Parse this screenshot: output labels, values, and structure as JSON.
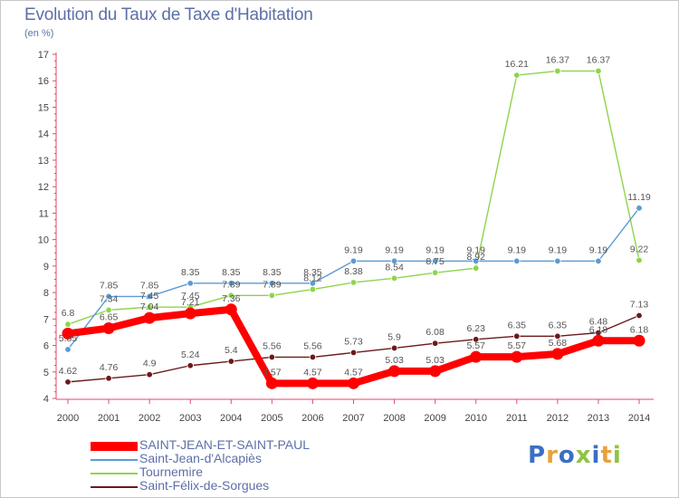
{
  "title": "Evolution du Taux de Taxe d'Habitation",
  "unit": "(en %)",
  "logo_text": "Proxiti",
  "chart_data": {
    "type": "line",
    "title": "Evolution du Taux de Taxe d'Habitation",
    "ylabel": "(en %)",
    "xlabel": "",
    "x": [
      "2000",
      "2001",
      "2002",
      "2003",
      "2004",
      "2005",
      "2006",
      "2007",
      "2008",
      "2009",
      "2010",
      "2011",
      "2012",
      "2013",
      "2014"
    ],
    "ylim": [
      4,
      17
    ],
    "yticks": [
      4,
      5,
      6,
      7,
      8,
      9,
      10,
      11,
      12,
      13,
      14,
      15,
      16,
      17
    ],
    "grid": false,
    "legend_position": "bottom-left",
    "series": [
      {
        "name": "SAINT-JEAN-ET-SAINT-PAUL",
        "color": "#ff0000",
        "values": [
          6.45,
          6.65,
          7.04,
          7.21,
          7.36,
          4.57,
          4.57,
          4.57,
          5.03,
          5.03,
          5.57,
          5.57,
          5.68,
          6.18,
          6.18
        ],
        "labels": [
          null,
          "6.65",
          "7.04",
          "7.21",
          "7.36",
          "4.57",
          "4.57",
          "4.57",
          "5.03",
          "5.03",
          "5.57",
          "5.57",
          "5.68",
          "6.18",
          "6.18"
        ]
      },
      {
        "name": "Saint-Jean-d'Alcapiès",
        "color": "#5b9bd5",
        "values": [
          5.85,
          7.85,
          7.85,
          8.35,
          8.35,
          8.35,
          8.35,
          9.19,
          9.19,
          9.19,
          9.19,
          9.19,
          9.19,
          9.19,
          11.19
        ],
        "labels": [
          "5.85",
          "7.85",
          "7.85",
          "8.35",
          "8.35",
          "8.35",
          "8.35",
          "9.19",
          "9.19",
          "9.19",
          "9.19",
          "9.19",
          "9.19",
          "9.19",
          "11.19"
        ]
      },
      {
        "name": "Tournemire",
        "color": "#8fd44a",
        "values": [
          6.8,
          7.34,
          7.45,
          7.45,
          7.89,
          7.89,
          8.12,
          8.38,
          8.54,
          8.75,
          8.92,
          16.21,
          16.37,
          16.37,
          9.22
        ],
        "labels": [
          "6.8",
          "7.34",
          "7.45",
          "7.45",
          "7.89",
          "7.89",
          "8.12",
          "8.38",
          "8.54",
          "8.75",
          "8.92",
          "16.21",
          "16.37",
          "16.37",
          "9.22"
        ]
      },
      {
        "name": "Saint-Félix-de-Sorgues",
        "color": "#6b1a1a",
        "values": [
          4.62,
          4.76,
          4.9,
          5.24,
          5.4,
          5.56,
          5.56,
          5.73,
          5.9,
          6.08,
          6.23,
          6.35,
          6.35,
          6.48,
          7.13
        ],
        "labels": [
          "4.62",
          "4.76",
          "4.9",
          "5.24",
          "5.4",
          "5.56",
          "5.56",
          "5.73",
          "5.9",
          "6.08",
          "6.23",
          "6.35",
          "6.35",
          "6.48",
          "7.13"
        ]
      }
    ]
  }
}
